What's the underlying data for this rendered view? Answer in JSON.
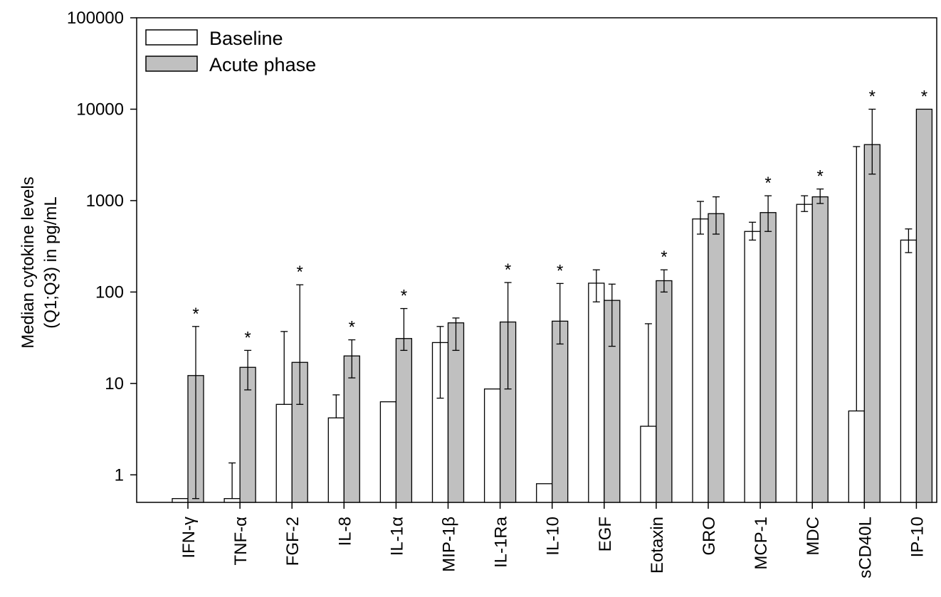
{
  "chart_data": {
    "type": "bar",
    "yscale": "log",
    "ylim": [
      0.5,
      100000
    ],
    "ylabel_line1": "Median cytokine levels",
    "ylabel_line2": "(Q1;Q3) in pg/mL",
    "xlabel": "",
    "yticks": [
      {
        "value": 1,
        "label": "1"
      },
      {
        "value": 10,
        "label": "10"
      },
      {
        "value": 100,
        "label": "100"
      },
      {
        "value": 1000,
        "label": "1000"
      },
      {
        "value": 10000,
        "label": "10000"
      },
      {
        "value": 100000,
        "label": "100000"
      }
    ],
    "categories": [
      "IFN-γ",
      "TNF-α",
      "FGF-2",
      "IL-8",
      "IL-1α",
      "MIP-1β",
      "IL-1Ra",
      "IL-10",
      "EGF",
      "Eotaxin",
      "GRO",
      "MCP-1",
      "MDC",
      "sCD40L",
      "IP-10"
    ],
    "series": [
      {
        "name": "Baseline",
        "color": "#ffffff",
        "values": [
          0.55,
          0.55,
          5.9,
          4.2,
          6.3,
          28,
          8.7,
          0.8,
          125,
          3.4,
          630,
          460,
          910,
          5.0,
          370
        ],
        "q1": [
          null,
          null,
          null,
          null,
          null,
          6.9,
          null,
          null,
          78,
          null,
          430,
          370,
          760,
          null,
          270
        ],
        "q3": [
          null,
          1.35,
          37,
          7.5,
          null,
          42,
          null,
          null,
          175,
          45,
          980,
          580,
          1130,
          3900,
          490
        ]
      },
      {
        "name": "Acute phase",
        "color": "#c0c0c0",
        "values": [
          12.2,
          15,
          17,
          20,
          31,
          46,
          47,
          48,
          81,
          133,
          720,
          740,
          1100,
          4100,
          10000
        ],
        "q1": [
          0.55,
          8.5,
          5.9,
          11.5,
          23,
          23,
          8.7,
          27,
          25.5,
          100,
          430,
          460,
          930,
          1950,
          null
        ],
        "q3": [
          42,
          23,
          120,
          30,
          66,
          52,
          127,
          124,
          122,
          175,
          1100,
          1130,
          1340,
          10000,
          null
        ]
      }
    ],
    "significant": [
      true,
      true,
      true,
      true,
      true,
      false,
      true,
      true,
      false,
      true,
      false,
      true,
      true,
      true,
      true
    ],
    "significance_marker": "*",
    "legend_position": "top-left"
  }
}
